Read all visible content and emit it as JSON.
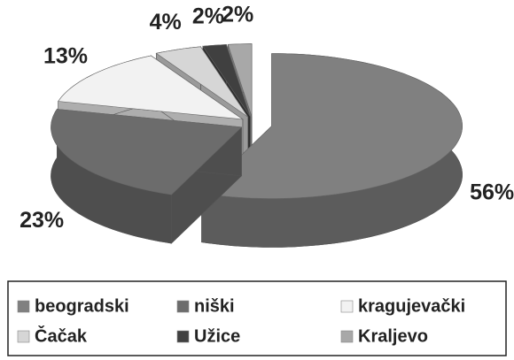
{
  "chart_data": {
    "type": "pie",
    "categories": [
      "beogradski",
      "niški",
      "kragujevački",
      "Čačak",
      "Užice",
      "Kraljevo"
    ],
    "values": [
      56,
      23,
      13,
      4,
      2,
      2
    ],
    "value_labels": [
      "56%",
      "23%",
      "13%",
      "4%",
      "2%",
      "2%"
    ],
    "colors": [
      "#808080",
      "#6c6c6c",
      "#f2f2f2",
      "#d6d6d6",
      "#404040",
      "#a8a8a8"
    ],
    "legend": "bottom"
  }
}
